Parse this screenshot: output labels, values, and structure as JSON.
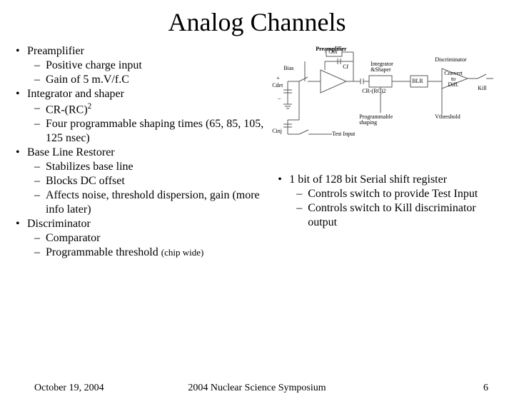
{
  "title": "Analog Channels",
  "left_bullets": [
    {
      "level": 1,
      "text": "Preamplifier"
    },
    {
      "level": 2,
      "text": "Positive charge input"
    },
    {
      "level": 2,
      "text": "Gain of 5 m.V/f.C"
    },
    {
      "level": 1,
      "text": "Integrator and shaper"
    },
    {
      "level": 2,
      "html": "CR-(RC)<span class='superscript'>2</span>"
    },
    {
      "level": 2,
      "text": "Four programmable shaping times (65, 85, 105, 125 nsec)"
    },
    {
      "level": 1,
      "text": "Base Line Restorer"
    },
    {
      "level": 2,
      "text": "Stabilizes base line"
    },
    {
      "level": 2,
      "text": "Blocks DC offset"
    },
    {
      "level": 2,
      "text": "Affects noise, threshold dispersion, gain (more info later)"
    },
    {
      "level": 1,
      "text": "Discriminator"
    },
    {
      "level": 2,
      "text": "Comparator"
    },
    {
      "level": 2,
      "html": "Programmable threshold <span class='small'>(chip wide)</span>"
    }
  ],
  "right_bullets": [
    {
      "level": 1,
      "text": "1 bit of 128 bit Serial shift register"
    },
    {
      "level": 2,
      "text": "Controls switch to provide Test Input"
    },
    {
      "level": 2,
      "text": "Controls switch to Kill discriminator output"
    }
  ],
  "diagram": {
    "labels": {
      "preamp": "Preamplifier",
      "gm": "Gm",
      "bias": "Bias",
      "cdet": "Cdet",
      "cinj": "Cinj",
      "cf": "Cf",
      "test": "Test Input",
      "crrc": "CR-(RC)2",
      "intshaper": "Integrator\n&Shaper",
      "prog": "Programmable\nshaping",
      "blr": "BLR",
      "disc": "Discriminator",
      "convert": "Convert\nto\nDiff.",
      "kill": "Kill",
      "vth": "Vthreshold"
    }
  },
  "footer": {
    "date": "October 19, 2004",
    "conference": "2004 Nuclear Science Symposium",
    "page": "6"
  },
  "colors": {
    "text": "#000000",
    "background": "#ffffff",
    "diagram_line": "#585858"
  }
}
